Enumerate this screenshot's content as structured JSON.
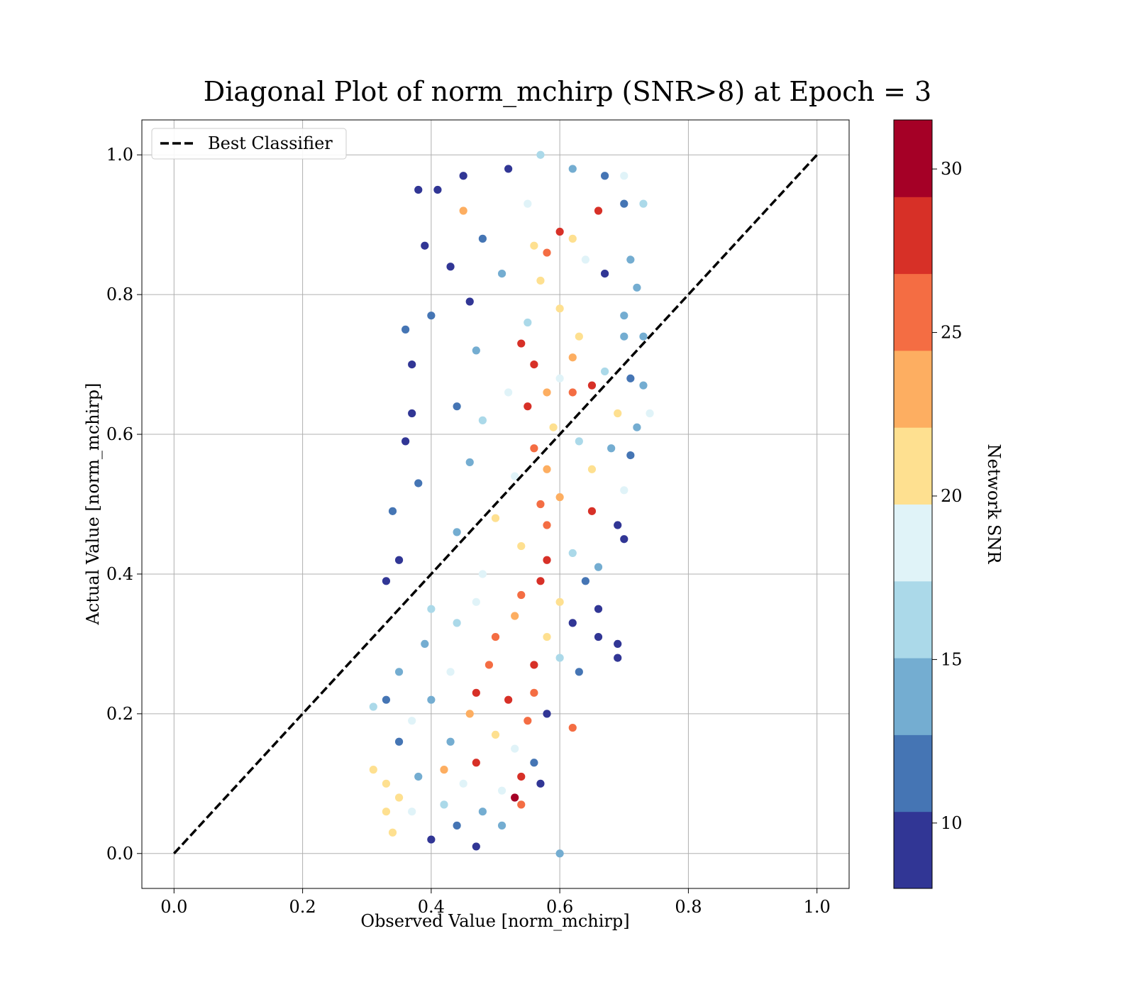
{
  "chart_data": {
    "type": "scatter",
    "title": "Diagonal Plot of norm_mchirp (SNR>8) at Epoch = 3",
    "xlabel": "Observed Value [norm_mchirp]",
    "ylabel": "Actual Value [norm_mchirp]",
    "xlim": [
      -0.05,
      1.05
    ],
    "ylim": [
      -0.05,
      1.05
    ],
    "xticks": [
      0.0,
      0.2,
      0.4,
      0.6,
      0.8,
      1.0
    ],
    "yticks": [
      0.0,
      0.2,
      0.4,
      0.6,
      0.8,
      1.0
    ],
    "xtick_labels": [
      "0.0",
      "0.2",
      "0.4",
      "0.6",
      "0.8",
      "1.0"
    ],
    "ytick_labels": [
      "0.0",
      "0.2",
      "0.4",
      "0.6",
      "0.8",
      "1.0"
    ],
    "grid": true,
    "legend": {
      "position": "top-left",
      "entries": [
        "Best Classifier"
      ]
    },
    "reference_line": {
      "name": "Best Classifier",
      "style": "dashed",
      "color": "#000000",
      "x": [
        0.0,
        1.0
      ],
      "y": [
        0.0,
        1.0
      ]
    },
    "colorbar": {
      "label": "Network SNR",
      "range": [
        8,
        31.5
      ],
      "ticks": [
        10,
        15,
        20,
        25,
        30
      ],
      "tick_labels": [
        "10",
        "15",
        "20",
        "25",
        "30"
      ],
      "colormap": "RdYlBu_r",
      "bands": [
        "#313695",
        "#4575b4",
        "#74add1",
        "#abd9e9",
        "#e0f3f8",
        "#fee090",
        "#fdae61",
        "#f46d43",
        "#d73027",
        "#a50026"
      ]
    },
    "series": [
      {
        "marker": "circle",
        "color_by": "Network SNR",
        "points": [
          [
            0.41,
            0.95,
            9
          ],
          [
            0.45,
            0.97,
            9
          ],
          [
            0.52,
            0.98,
            10
          ],
          [
            0.57,
            1.0,
            16
          ],
          [
            0.62,
            0.98,
            13
          ],
          [
            0.67,
            0.97,
            11
          ],
          [
            0.7,
            0.97,
            18
          ],
          [
            0.7,
            0.93,
            11
          ],
          [
            0.73,
            0.93,
            16
          ],
          [
            0.66,
            0.92,
            29
          ],
          [
            0.45,
            0.92,
            24
          ],
          [
            0.55,
            0.93,
            18
          ],
          [
            0.38,
            0.95,
            9
          ],
          [
            0.39,
            0.87,
            10
          ],
          [
            0.6,
            0.89,
            28
          ],
          [
            0.62,
            0.88,
            20
          ],
          [
            0.56,
            0.87,
            22
          ],
          [
            0.58,
            0.86,
            25
          ],
          [
            0.48,
            0.88,
            12
          ],
          [
            0.64,
            0.85,
            19
          ],
          [
            0.71,
            0.85,
            15
          ],
          [
            0.67,
            0.83,
            10
          ],
          [
            0.43,
            0.84,
            9
          ],
          [
            0.51,
            0.83,
            14
          ],
          [
            0.57,
            0.82,
            20
          ],
          [
            0.72,
            0.81,
            14
          ],
          [
            0.7,
            0.77,
            13
          ],
          [
            0.6,
            0.78,
            22
          ],
          [
            0.46,
            0.79,
            10
          ],
          [
            0.4,
            0.77,
            11
          ],
          [
            0.36,
            0.75,
            12
          ],
          [
            0.55,
            0.76,
            17
          ],
          [
            0.63,
            0.74,
            21
          ],
          [
            0.7,
            0.74,
            15
          ],
          [
            0.73,
            0.74,
            13
          ],
          [
            0.54,
            0.73,
            27
          ],
          [
            0.62,
            0.71,
            23
          ],
          [
            0.56,
            0.7,
            28
          ],
          [
            0.47,
            0.72,
            15
          ],
          [
            0.37,
            0.7,
            9
          ],
          [
            0.67,
            0.69,
            16
          ],
          [
            0.6,
            0.68,
            19
          ],
          [
            0.71,
            0.68,
            11
          ],
          [
            0.65,
            0.67,
            27
          ],
          [
            0.73,
            0.67,
            14
          ],
          [
            0.52,
            0.66,
            18
          ],
          [
            0.58,
            0.66,
            24
          ],
          [
            0.62,
            0.66,
            26
          ],
          [
            0.55,
            0.64,
            28
          ],
          [
            0.44,
            0.64,
            12
          ],
          [
            0.37,
            0.63,
            10
          ],
          [
            0.69,
            0.63,
            20
          ],
          [
            0.74,
            0.63,
            19
          ],
          [
            0.48,
            0.62,
            16
          ],
          [
            0.59,
            0.61,
            22
          ],
          [
            0.72,
            0.61,
            13
          ],
          [
            0.56,
            0.58,
            25
          ],
          [
            0.63,
            0.59,
            17
          ],
          [
            0.36,
            0.59,
            9
          ],
          [
            0.68,
            0.58,
            14
          ],
          [
            0.71,
            0.57,
            12
          ],
          [
            0.46,
            0.56,
            15
          ],
          [
            0.58,
            0.55,
            24
          ],
          [
            0.65,
            0.55,
            21
          ],
          [
            0.53,
            0.54,
            18
          ],
          [
            0.38,
            0.53,
            11
          ],
          [
            0.7,
            0.52,
            19
          ],
          [
            0.6,
            0.51,
            23
          ],
          [
            0.57,
            0.5,
            25
          ],
          [
            0.65,
            0.49,
            29
          ],
          [
            0.34,
            0.49,
            12
          ],
          [
            0.5,
            0.48,
            22
          ],
          [
            0.69,
            0.47,
            9
          ],
          [
            0.44,
            0.46,
            14
          ],
          [
            0.58,
            0.47,
            26
          ],
          [
            0.7,
            0.45,
            10
          ],
          [
            0.54,
            0.44,
            21
          ],
          [
            0.62,
            0.43,
            16
          ],
          [
            0.58,
            0.42,
            28
          ],
          [
            0.35,
            0.42,
            10
          ],
          [
            0.66,
            0.41,
            13
          ],
          [
            0.48,
            0.4,
            19
          ],
          [
            0.57,
            0.39,
            27
          ],
          [
            0.64,
            0.39,
            11
          ],
          [
            0.33,
            0.39,
            9
          ],
          [
            0.54,
            0.37,
            25
          ],
          [
            0.6,
            0.36,
            22
          ],
          [
            0.47,
            0.36,
            18
          ],
          [
            0.4,
            0.35,
            16
          ],
          [
            0.66,
            0.35,
            10
          ],
          [
            0.53,
            0.34,
            24
          ],
          [
            0.62,
            0.33,
            9
          ],
          [
            0.44,
            0.33,
            17
          ],
          [
            0.69,
            0.3,
            9
          ],
          [
            0.66,
            0.31,
            10
          ],
          [
            0.58,
            0.31,
            21
          ],
          [
            0.5,
            0.31,
            26
          ],
          [
            0.39,
            0.3,
            14
          ],
          [
            0.69,
            0.28,
            9
          ],
          [
            0.6,
            0.28,
            16
          ],
          [
            0.56,
            0.27,
            28
          ],
          [
            0.49,
            0.27,
            25
          ],
          [
            0.43,
            0.26,
            18
          ],
          [
            0.35,
            0.26,
            14
          ],
          [
            0.63,
            0.26,
            12
          ],
          [
            0.56,
            0.23,
            26
          ],
          [
            0.47,
            0.23,
            27
          ],
          [
            0.4,
            0.22,
            15
          ],
          [
            0.33,
            0.22,
            12
          ],
          [
            0.52,
            0.22,
            28
          ],
          [
            0.58,
            0.2,
            10
          ],
          [
            0.46,
            0.2,
            24
          ],
          [
            0.31,
            0.21,
            16
          ],
          [
            0.37,
            0.19,
            18
          ],
          [
            0.55,
            0.19,
            25
          ],
          [
            0.62,
            0.18,
            26
          ],
          [
            0.5,
            0.17,
            22
          ],
          [
            0.43,
            0.16,
            14
          ],
          [
            0.35,
            0.16,
            12
          ],
          [
            0.53,
            0.15,
            19
          ],
          [
            0.56,
            0.13,
            11
          ],
          [
            0.47,
            0.13,
            27
          ],
          [
            0.42,
            0.12,
            23
          ],
          [
            0.31,
            0.12,
            20
          ],
          [
            0.38,
            0.11,
            15
          ],
          [
            0.54,
            0.11,
            28
          ],
          [
            0.33,
            0.1,
            21
          ],
          [
            0.45,
            0.1,
            19
          ],
          [
            0.57,
            0.1,
            10
          ],
          [
            0.51,
            0.09,
            18
          ],
          [
            0.53,
            0.08,
            30
          ],
          [
            0.35,
            0.08,
            22
          ],
          [
            0.42,
            0.07,
            16
          ],
          [
            0.54,
            0.07,
            25
          ],
          [
            0.48,
            0.06,
            14
          ],
          [
            0.33,
            0.06,
            21
          ],
          [
            0.37,
            0.06,
            18
          ],
          [
            0.44,
            0.04,
            12
          ],
          [
            0.51,
            0.04,
            15
          ],
          [
            0.34,
            0.03,
            20
          ],
          [
            0.4,
            0.02,
            9
          ],
          [
            0.47,
            0.01,
            10
          ],
          [
            0.6,
            0.0,
            14
          ]
        ]
      }
    ]
  }
}
